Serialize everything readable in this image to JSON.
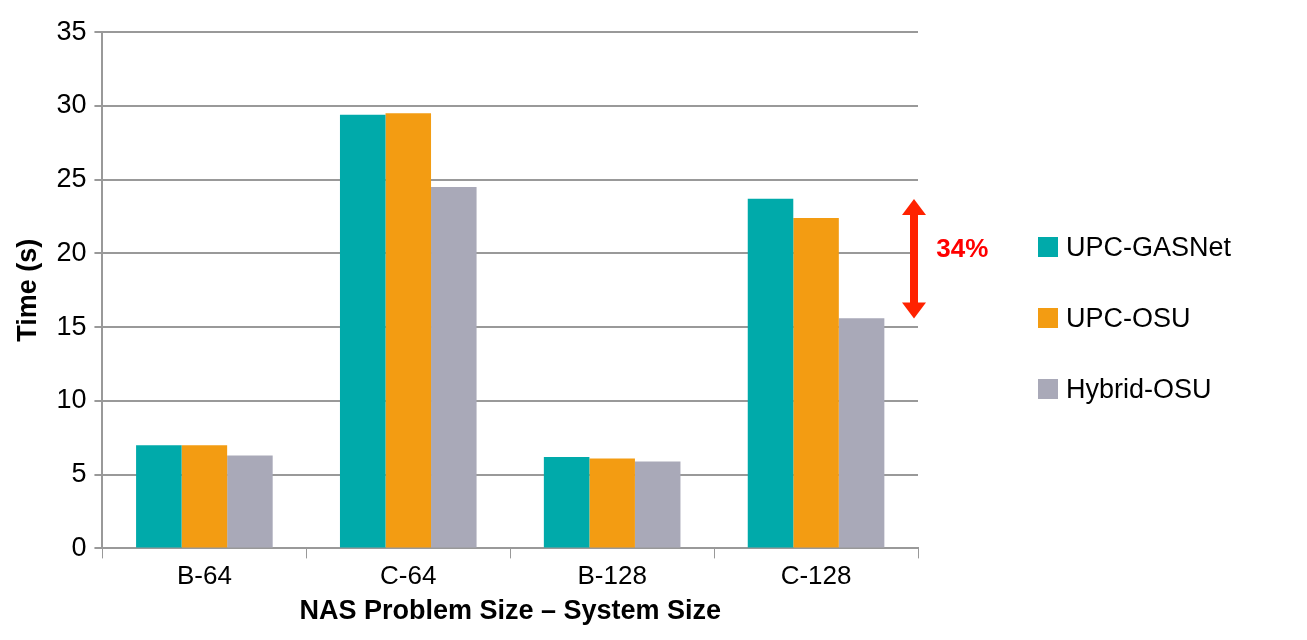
{
  "chart_data": {
    "type": "bar",
    "xlabel": "NAS Problem Size – System Size",
    "ylabel": "Time (s)",
    "categories": [
      "B-64",
      "C-64",
      "B-128",
      "C-128"
    ],
    "series": [
      {
        "name": "UPC-GASNet",
        "color": "#00aaaa",
        "values": [
          7.0,
          29.4,
          6.2,
          23.7
        ]
      },
      {
        "name": "UPC-OSU",
        "color": "#f39c12",
        "values": [
          7.0,
          29.5,
          6.1,
          22.4
        ]
      },
      {
        "name": "Hybrid-OSU",
        "color": "#a9a9b8",
        "values": [
          6.3,
          24.5,
          5.9,
          15.6
        ]
      }
    ],
    "ylim": [
      0,
      35
    ],
    "yticks": [
      0,
      5,
      10,
      15,
      20,
      25,
      30,
      35
    ],
    "grid": "y",
    "legend": "right",
    "annotations": [
      "34%"
    ]
  }
}
